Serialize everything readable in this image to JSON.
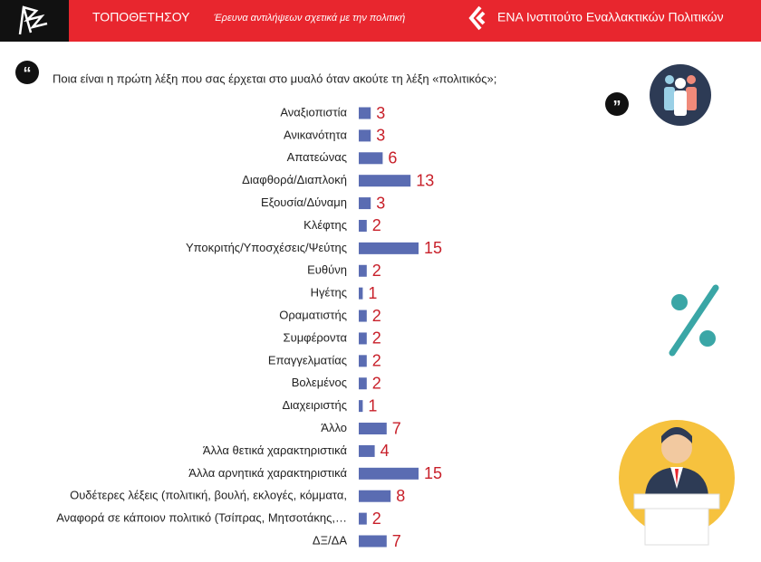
{
  "header": {
    "brand": "ΤΟΠΟΘΕΤΗΣΟΥ",
    "subtitle": "Έρευνα αντιλήψεων σχετικά με την πολιτική",
    "org": "ΕΝΑ Ινστιτούτο Εναλλακτικών Πολιτικών"
  },
  "chart_data": {
    "type": "bar",
    "orientation": "horizontal",
    "title": "Ποια είναι η πρώτη λέξη που σας έρχεται στο μυαλό όταν ακούτε τη λέξη «πολιτικός»;",
    "categories": [
      "Αναξιοπιστία",
      "Ανικανότητα",
      "Απατεώνας",
      "Διαφθορά/Διαπλοκή",
      "Εξουσία/Δύναμη",
      "Κλέφτης",
      "Υποκριτής/Υποσχέσεις/Ψεύτης",
      "Ευθύνη",
      "Ηγέτης",
      "Οραματιστής",
      "Συμφέροντα",
      "Επαγγελματίας",
      "Βολεμένος",
      "Διαχειριστής",
      "Άλλο",
      "Άλλα θετικά χαρακτηριστικά",
      "Άλλα αρνητικά χαρακτηριστικά",
      "Ουδέτερες λέξεις (πολιτική, βουλή, εκλογές, κόμματα,",
      "Αναφορά σε κάποιον πολιτικό (Τσίπρας, Μητσοτάκης,…",
      "ΔΞ/ΔΑ"
    ],
    "values": [
      3,
      3,
      6,
      13,
      3,
      2,
      15,
      2,
      1,
      2,
      2,
      2,
      2,
      1,
      7,
      4,
      15,
      8,
      2,
      7
    ],
    "color": "#5a6cb2",
    "label_color": "#c8202a"
  }
}
